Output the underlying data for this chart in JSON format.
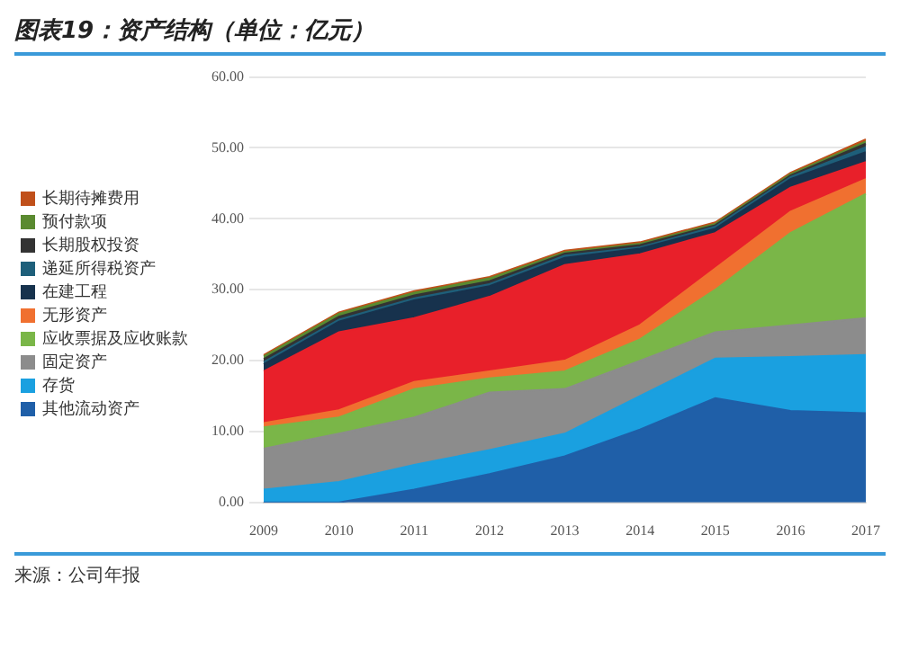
{
  "chart_data": {
    "type": "area",
    "title": "图表19：资产结构（单位：亿元）",
    "annotations": [
      "来源：公司年报"
    ],
    "categories": [
      "2009",
      "2010",
      "2011",
      "2012",
      "2013",
      "2014",
      "2015",
      "2016",
      "2017"
    ],
    "stacked": true,
    "legend": "left",
    "grid": "y",
    "ylim": [
      0,
      60
    ],
    "yticks": [
      {
        "value": 0,
        "label": "0.00"
      },
      {
        "value": 10,
        "label": "10.00"
      },
      {
        "value": 20,
        "label": "20.00"
      },
      {
        "value": 30,
        "label": "30.00"
      },
      {
        "value": 40,
        "label": "40.00"
      },
      {
        "value": 50,
        "label": "50.00"
      },
      {
        "value": 60,
        "label": "60.00"
      }
    ],
    "series": [
      {
        "name": "其他流动资产",
        "color": "#1f5fa8",
        "values": [
          0,
          0,
          1.8,
          4,
          6.5,
          10.3,
          14.7,
          12.9,
          12.6
        ]
      },
      {
        "name": "存货",
        "color": "#1aa0e0",
        "values": [
          1.8,
          2.9,
          3.5,
          3.4,
          3.2,
          4.7,
          5.6,
          7.6,
          8.2
        ]
      },
      {
        "name": "固定资产",
        "color": "#8c8c8c",
        "values": [
          5.8,
          6.8,
          6.7,
          8.1,
          6.3,
          5,
          3.7,
          4.5,
          5.2
        ]
      },
      {
        "name": "应收票据及应收账款",
        "color": "#7ab648",
        "values": [
          3,
          2.3,
          4,
          2,
          2.5,
          3,
          6,
          13,
          17.5
        ]
      },
      {
        "name": "无形资产",
        "color": "#f07030",
        "values": [
          0.6,
          1,
          1,
          1,
          1.5,
          2,
          3,
          3,
          2.1
        ]
      },
      {
        "color": "#e8202a",
        "values": [
          7.3,
          11,
          9,
          10.5,
          13.5,
          10,
          5,
          3.4,
          2.4
        ]
      },
      {
        "name": "在建工程",
        "color": "#17324d",
        "values": [
          1,
          1.5,
          2.5,
          1.5,
          1,
          0.8,
          0.6,
          1.2,
          1.4
        ]
      },
      {
        "name": "递延所得税资产",
        "color": "#1e5f7a",
        "values": [
          0.3,
          0.3,
          0.3,
          0.3,
          0.3,
          0.2,
          0.3,
          0.3,
          0.7
        ]
      },
      {
        "name": "长期股权投资",
        "color": "#333333",
        "values": [
          0.4,
          0.4,
          0.4,
          0.4,
          0.3,
          0.3,
          0.2,
          0.2,
          0.5
        ]
      },
      {
        "name": "预付款项",
        "color": "#5a8a30",
        "values": [
          0.4,
          0.4,
          0.4,
          0.4,
          0.2,
          0.2,
          0.2,
          0.2,
          0.3
        ]
      },
      {
        "name": "长期待摊费用",
        "color": "#c0501a",
        "values": [
          0.2,
          0.2,
          0.2,
          0.2,
          0.2,
          0.2,
          0.2,
          0.2,
          0.3
        ]
      }
    ]
  }
}
